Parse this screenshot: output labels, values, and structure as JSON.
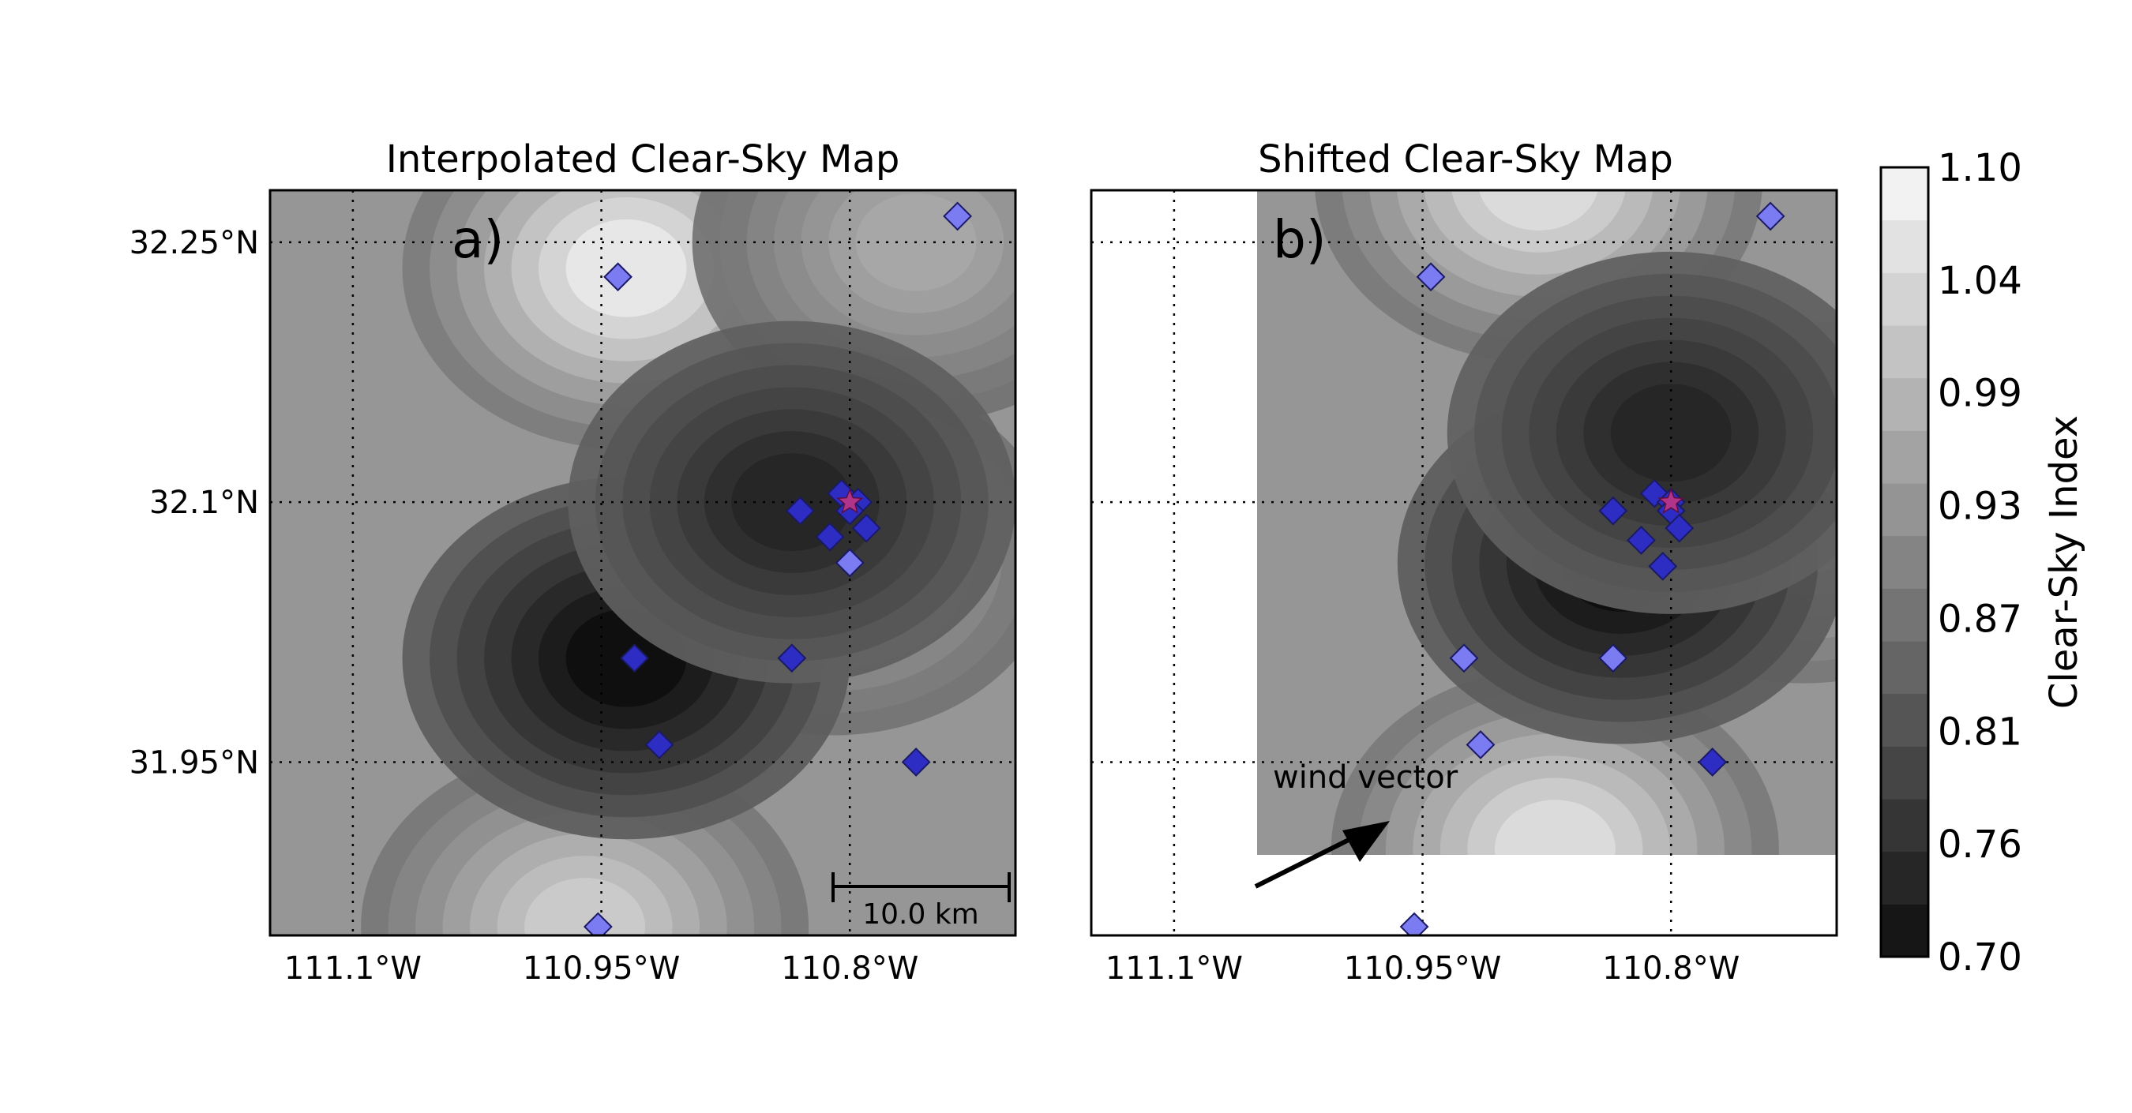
{
  "panels": [
    {
      "title": "Interpolated Clear-Sky Map",
      "label": "a)",
      "scale_bar_label": "10.0 km",
      "x_ticks": [
        "111.1°W",
        "110.95°W",
        "110.8°W"
      ],
      "y_ticks": [
        "32.25°N",
        "32.1°N",
        "31.95°N"
      ],
      "blobs": [
        {
          "lon": -110.935,
          "lat": 32.235,
          "value": 1.07
        },
        {
          "lon": -110.96,
          "lat": 31.855,
          "value": 1.02
        },
        {
          "lon": -110.76,
          "lat": 32.25,
          "value": 0.96
        },
        {
          "lon": -110.81,
          "lat": 32.07,
          "value": 0.97
        },
        {
          "lon": -110.935,
          "lat": 32.01,
          "value": 0.7
        },
        {
          "lon": -110.835,
          "lat": 32.1,
          "value": 0.74
        }
      ],
      "stations": [
        {
          "lon": -110.94,
          "lat": 32.23,
          "tone": "light"
        },
        {
          "lon": -110.735,
          "lat": 32.265,
          "tone": "light"
        },
        {
          "lon": -110.93,
          "lat": 32.01,
          "tone": "dark"
        },
        {
          "lon": -110.915,
          "lat": 31.96,
          "tone": "dark"
        },
        {
          "lon": -110.835,
          "lat": 32.01,
          "tone": "dark"
        },
        {
          "lon": -110.83,
          "lat": 32.095,
          "tone": "dark"
        },
        {
          "lon": -110.805,
          "lat": 32.105,
          "tone": "dark"
        },
        {
          "lon": -110.795,
          "lat": 32.1,
          "tone": "dark"
        },
        {
          "lon": -110.8,
          "lat": 32.095,
          "tone": "dark"
        },
        {
          "lon": -110.79,
          "lat": 32.085,
          "tone": "dark"
        },
        {
          "lon": -110.812,
          "lat": 32.08,
          "tone": "dark"
        },
        {
          "lon": -110.8,
          "lat": 32.065,
          "tone": "light"
        },
        {
          "lon": -110.76,
          "lat": 31.95,
          "tone": "dark"
        },
        {
          "lon": -110.952,
          "lat": 31.855,
          "tone": "light"
        }
      ],
      "star": {
        "lon": -110.8,
        "lat": 32.1
      }
    },
    {
      "title": "Shifted Clear-Sky Map",
      "label": "b)",
      "wind_vector_label": "wind vector",
      "x_ticks": [
        "111.1°W",
        "110.95°W",
        "110.8°W"
      ],
      "y_ticks": [],
      "blobs": [
        {
          "lon": -110.88,
          "lat": 32.285,
          "value": 1.05
        },
        {
          "lon": -110.87,
          "lat": 31.9,
          "value": 1.05
        },
        {
          "lon": -110.72,
          "lat": 32.1,
          "value": 1.01
        },
        {
          "lon": -110.83,
          "lat": 32.065,
          "value": 0.7
        },
        {
          "lon": -110.8,
          "lat": 32.14,
          "value": 0.74
        }
      ],
      "stations": [
        {
          "lon": -110.945,
          "lat": 32.23,
          "tone": "light"
        },
        {
          "lon": -110.74,
          "lat": 32.265,
          "tone": "light"
        },
        {
          "lon": -110.925,
          "lat": 32.01,
          "tone": "light"
        },
        {
          "lon": -110.915,
          "lat": 31.96,
          "tone": "light"
        },
        {
          "lon": -110.835,
          "lat": 32.01,
          "tone": "light"
        },
        {
          "lon": -110.835,
          "lat": 32.095,
          "tone": "dark"
        },
        {
          "lon": -110.81,
          "lat": 32.105,
          "tone": "dark"
        },
        {
          "lon": -110.8,
          "lat": 32.1,
          "tone": "dark"
        },
        {
          "lon": -110.8,
          "lat": 32.095,
          "tone": "dark"
        },
        {
          "lon": -110.795,
          "lat": 32.085,
          "tone": "dark"
        },
        {
          "lon": -110.818,
          "lat": 32.078,
          "tone": "dark"
        },
        {
          "lon": -110.805,
          "lat": 32.063,
          "tone": "dark"
        },
        {
          "lon": -110.775,
          "lat": 31.95,
          "tone": "dark"
        },
        {
          "lon": -110.955,
          "lat": 31.855,
          "tone": "light"
        }
      ],
      "star": {
        "lon": -110.8,
        "lat": 32.1
      }
    }
  ],
  "map_extent": {
    "lon": [
      -111.15,
      -110.7
    ],
    "lat": [
      31.85,
      32.28
    ]
  },
  "grid_lons": [
    -111.1,
    -110.95,
    -110.8
  ],
  "grid_lats": [
    32.25,
    32.1,
    31.95
  ],
  "colorbar": {
    "label": "Clear-Sky Index",
    "tick_labels": [
      "1.10",
      "1.04",
      "0.99",
      "0.93",
      "0.87",
      "0.81",
      "0.76",
      "0.70"
    ],
    "min": 0.7,
    "max": 1.1,
    "levels": 15
  },
  "colors": {
    "station_light": "#7b7bf2",
    "station_dark": "#2d2dc4",
    "station_edge": "#1a1a66",
    "star": "#b0348a",
    "wind_arrow": "#000000"
  }
}
